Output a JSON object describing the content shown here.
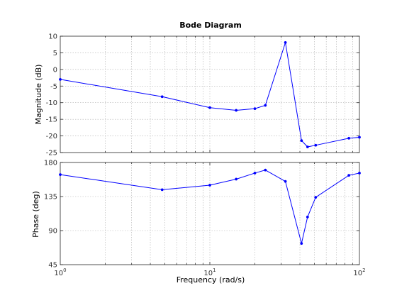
{
  "chart_data": {
    "type": "line",
    "title": "Bode Diagram",
    "xlabel": "Frequency  (rad/s)",
    "xscale": "log",
    "xlim": [
      1,
      100
    ],
    "x_major_ticks": [
      {
        "base": "10",
        "exp": "0"
      },
      {
        "base": "10",
        "exp": "1"
      },
      {
        "base": "10",
        "exp": "2"
      }
    ],
    "grid": true,
    "panels": [
      {
        "id": "magnitude",
        "ylabel": "Magnitude (dB)",
        "ylim": [
          -25,
          10
        ],
        "yticks": [
          10,
          5,
          0,
          -5,
          -10,
          -15,
          -20,
          -25
        ],
        "ytick_labels": [
          "10",
          "5",
          "0",
          "-5",
          "-10",
          "-15",
          "-20",
          "-25"
        ],
        "series": [
          {
            "x": [
              1,
              4.8,
              10,
              15,
              20,
              23.5,
              32,
              41,
              45,
              51,
              85,
              100
            ],
            "y": [
              -3,
              -8.2,
              -11.5,
              -12.3,
              -11.8,
              -10.8,
              8.1,
              -21.4,
              -23.3,
              -22.8,
              -20.7,
              -20.4
            ]
          }
        ]
      },
      {
        "id": "phase",
        "ylabel": "Phase (deg)",
        "ylim": [
          45,
          180
        ],
        "yticks": [
          180,
          135,
          90,
          45
        ],
        "ytick_labels": [
          "180",
          "135",
          "90",
          "45"
        ],
        "series": [
          {
            "x": [
              1,
              4.8,
              10,
              15,
              20,
              23.5,
              32,
              41,
              45,
              51,
              85,
              100
            ],
            "y": [
              164,
              144,
              150,
              158,
              166,
              170,
              155,
              73,
              108,
              134,
              163,
              166
            ]
          }
        ]
      }
    ]
  }
}
